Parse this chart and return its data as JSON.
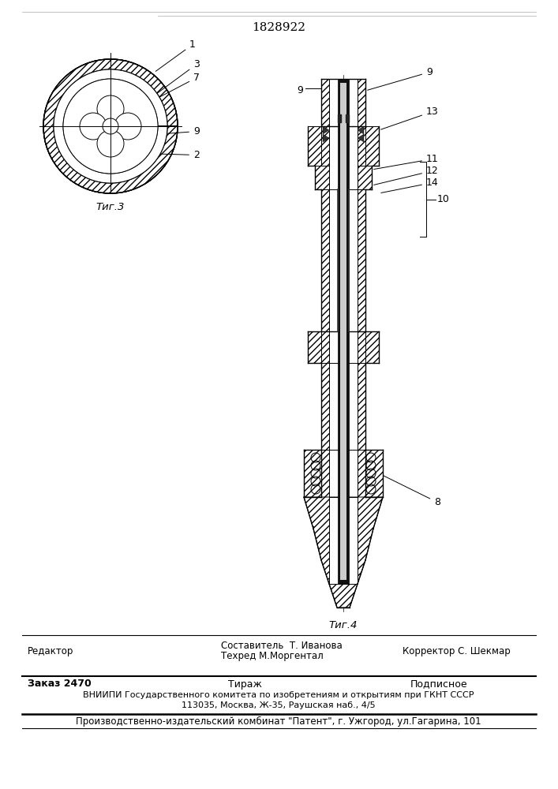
{
  "patent_number": "1828922",
  "fig3_label": "Τиг.3",
  "fig4_label": "Τиг.4",
  "bg_color": "#ffffff",
  "line_color": "#000000",
  "footer": {
    "editor_label": "Редактор",
    "compiler_label": "Составитель  Т. Иванова",
    "techred_label": "Техред М.Моргентал",
    "corrector_label": "Корректор С. Шекмар",
    "order_label": "Заказ 2470",
    "tirazh_label": "Тираж",
    "podpisnoe_label": "Подписное",
    "vniiipi_line1": "ВНИИПИ Государственного комитета по изобретениям и открытиям при ГКНТ СССР",
    "vniiipi_line2": "113035, Москва, Ж-35, Раушская наб., 4/5",
    "publisher": "Производственно-издательский комбинат \"Патент\", г. Ужгород, ул.Гагарина, 101"
  }
}
